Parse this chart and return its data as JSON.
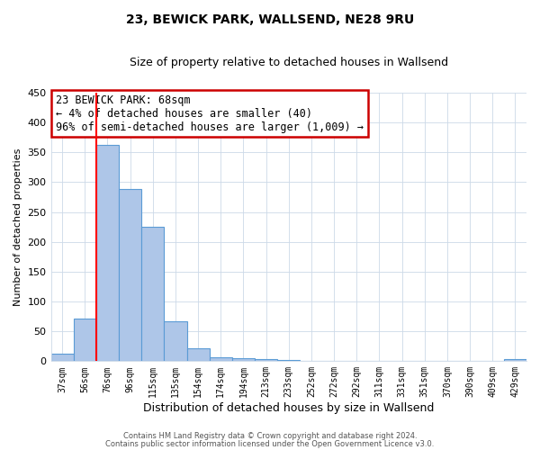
{
  "title": "23, BEWICK PARK, WALLSEND, NE28 9RU",
  "subtitle": "Size of property relative to detached houses in Wallsend",
  "xlabel": "Distribution of detached houses by size in Wallsend",
  "ylabel": "Number of detached properties",
  "bar_labels": [
    "37sqm",
    "56sqm",
    "76sqm",
    "96sqm",
    "115sqm",
    "135sqm",
    "154sqm",
    "174sqm",
    "194sqm",
    "213sqm",
    "233sqm",
    "252sqm",
    "272sqm",
    "292sqm",
    "311sqm",
    "331sqm",
    "351sqm",
    "370sqm",
    "390sqm",
    "409sqm",
    "429sqm"
  ],
  "bar_heights": [
    13,
    71,
    363,
    288,
    225,
    67,
    21,
    7,
    5,
    3,
    2,
    0,
    0,
    0,
    0,
    0,
    0,
    0,
    0,
    0,
    4
  ],
  "bar_color": "#aec6e8",
  "bar_edge_color": "#5b9bd5",
  "ylim": [
    0,
    450
  ],
  "yticks": [
    0,
    50,
    100,
    150,
    200,
    250,
    300,
    350,
    400,
    450
  ],
  "annotation_text": "23 BEWICK PARK: 68sqm\n← 4% of detached houses are smaller (40)\n96% of semi-detached houses are larger (1,009) →",
  "annotation_box_color": "#ffffff",
  "annotation_box_edge": "#cc0000",
  "footer_line1": "Contains HM Land Registry data © Crown copyright and database right 2024.",
  "footer_line2": "Contains public sector information licensed under the Open Government Licence v3.0.",
  "background_color": "#ffffff",
  "grid_color": "#ccd9e8"
}
